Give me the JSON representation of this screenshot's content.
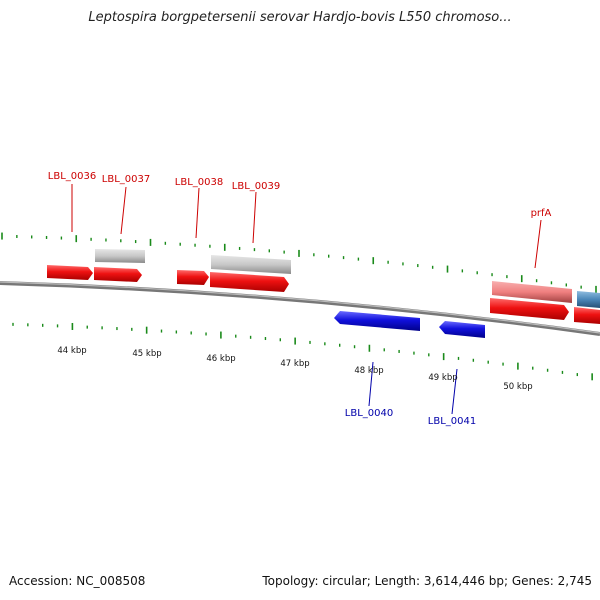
{
  "title": "Leptospira borgpetersenii serovar Hardjo-bovis L550 chromoso...",
  "footer": {
    "accession": "Accession: NC_008508",
    "topology": "Topology: circular; Length: 3,614,446 bp; Genes: 2,745"
  },
  "colors": {
    "forward_gene": "#ee1111",
    "reverse_gene": "#1111dd",
    "pseudo_gene": "#c8c8c8",
    "rna_gene": "#f08080",
    "other_gene": "#4a86b8",
    "tick": "#1a8a1a",
    "backbone": "#888888",
    "label_top": "#cc0000",
    "label_bottom": "#0000aa"
  },
  "chart_data": {
    "type": "genome-map",
    "kbp_ticks": [
      44,
      45,
      46,
      47,
      48,
      49,
      50
    ],
    "kbp_tick_labels": [
      "44 kbp",
      "45 kbp",
      "46 kbp",
      "47 kbp",
      "48 kbp",
      "49 kbp",
      "50 kbp"
    ],
    "gene_labels_top": [
      "LBL_0036",
      "LBL_0037",
      "LBL_0038",
      "LBL_0039",
      "prfA"
    ],
    "gene_labels_bottom": [
      "LBL_0040",
      "LBL_0041"
    ]
  }
}
